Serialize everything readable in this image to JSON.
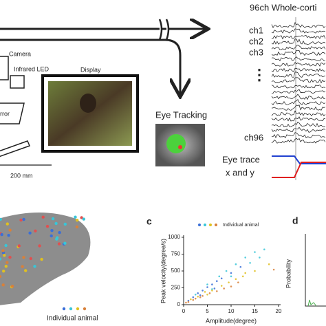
{
  "labels": {
    "recording_title": "96ch Whole-corti",
    "channels": [
      "ch1",
      "ch2",
      "ch3",
      "ch96"
    ],
    "ellipsis": "⋮",
    "eye_trace": "Eye trace",
    "x_and_y": "x and y",
    "eye_tracking": "Eye Tracking",
    "camera": "Camera",
    "infrared_led": "Infrared LED",
    "display": "Display",
    "mirror": "rror",
    "scale": "200 mm",
    "brain_legend": "Individual animal",
    "panel_d": "d",
    "panel_d_ylabel": "Probability"
  },
  "chart_data": {
    "type": "scatter",
    "panel": "c",
    "legend_label": "Individual animal",
    "xlabel": "Amplitude(degree)",
    "ylabel": "Peak velocity(degree/s)",
    "xlim": [
      0,
      20
    ],
    "xticks": [
      0,
      5,
      10,
      15,
      20
    ],
    "ylim": [
      0,
      1000
    ],
    "yticks": [
      0,
      250,
      500,
      750,
      1000
    ],
    "series": [
      {
        "color": "#3a6fd8",
        "x": [
          1,
          2,
          3,
          4,
          5,
          6,
          7,
          8,
          10,
          12,
          3.5,
          6.5
        ],
        "values": [
          60,
          110,
          170,
          210,
          260,
          300,
          350,
          390,
          470,
          560,
          140,
          240
        ]
      },
      {
        "color": "#38c6d8",
        "x": [
          2.5,
          5,
          7.5,
          9,
          11,
          13,
          15,
          17,
          14,
          10,
          6,
          16
        ],
        "values": [
          150,
          300,
          420,
          500,
          600,
          700,
          780,
          820,
          620,
          420,
          230,
          700
        ]
      },
      {
        "color": "#e0c020",
        "x": [
          1.5,
          3,
          4.5,
          6,
          8,
          9.5,
          11,
          12.5,
          15,
          18,
          5,
          13
        ],
        "values": [
          80,
          120,
          190,
          210,
          280,
          330,
          380,
          420,
          500,
          600,
          150,
          470
        ]
      },
      {
        "color": "#d8803a",
        "x": [
          0.5,
          1,
          2,
          2.5,
          3.5,
          4,
          5.5,
          7,
          8.5,
          10,
          19,
          11.5
        ],
        "values": [
          30,
          40,
          70,
          90,
          110,
          130,
          170,
          200,
          240,
          270,
          520,
          330
        ]
      }
    ]
  }
}
